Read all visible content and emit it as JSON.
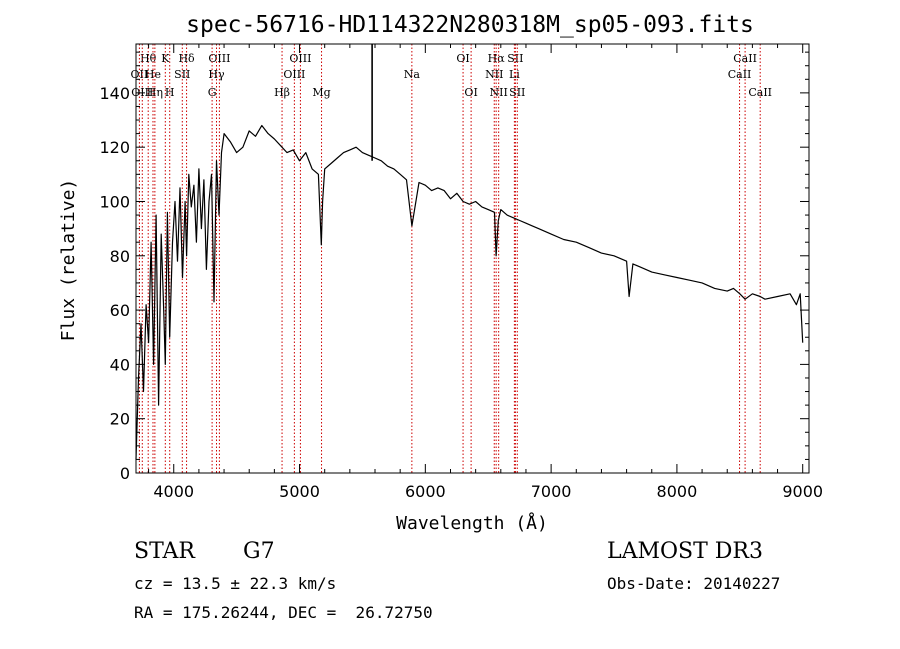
{
  "chart_data": {
    "type": "line",
    "title": "spec-56716-HD114322N280318M_sp05-093.fits",
    "xlabel": "Wavelength (Å)",
    "ylabel": "Flux (relative)",
    "xlim": [
      3700,
      9050
    ],
    "ylim": [
      0,
      158
    ],
    "x_ticks": [
      4000,
      5000,
      6000,
      7000,
      8000,
      9000
    ],
    "y_ticks": [
      0,
      20,
      40,
      60,
      80,
      100,
      120,
      140
    ],
    "grid": false,
    "line_color": "#000000",
    "marker_color": "#cc0000",
    "series": [
      {
        "name": "flux",
        "x": [
          3700,
          3720,
          3740,
          3760,
          3780,
          3800,
          3820,
          3840,
          3860,
          3880,
          3900,
          3920,
          3933,
          3950,
          3968,
          3990,
          4010,
          4030,
          4050,
          4070,
          4090,
          4102,
          4120,
          4140,
          4160,
          4180,
          4200,
          4220,
          4240,
          4260,
          4280,
          4300,
          4320,
          4340,
          4360,
          4380,
          4400,
          4450,
          4500,
          4550,
          4600,
          4650,
          4700,
          4750,
          4800,
          4861,
          4900,
          4950,
          5000,
          5050,
          5100,
          5150,
          5173,
          5183,
          5200,
          5250,
          5300,
          5350,
          5400,
          5450,
          5500,
          5550,
          5600,
          5650,
          5700,
          5750,
          5800,
          5850,
          5893,
          5950,
          6000,
          6050,
          6100,
          6150,
          6200,
          6250,
          6300,
          6350,
          6400,
          6450,
          6500,
          6550,
          6563,
          6580,
          6600,
          6650,
          6700,
          6750,
          6800,
          6850,
          6900,
          7000,
          7100,
          7200,
          7300,
          7400,
          7500,
          7600,
          7620,
          7650,
          7700,
          7800,
          7900,
          8000,
          8100,
          8200,
          8300,
          8400,
          8450,
          8500,
          8542,
          8600,
          8662,
          8700,
          8800,
          8900,
          8950,
          8980,
          9000
        ],
        "y": [
          5,
          35,
          55,
          30,
          62,
          48,
          85,
          40,
          95,
          25,
          88,
          60,
          40,
          96,
          50,
          85,
          100,
          78,
          105,
          72,
          100,
          80,
          110,
          98,
          106,
          85,
          112,
          90,
          108,
          75,
          100,
          110,
          63,
          115,
          95,
          118,
          125,
          122,
          118,
          120,
          126,
          124,
          128,
          125,
          123,
          120,
          118,
          119,
          115,
          118,
          112,
          110,
          84,
          100,
          112,
          114,
          116,
          118,
          119,
          120,
          118,
          117,
          116,
          115,
          113,
          112,
          110,
          108,
          91,
          107,
          106,
          104,
          105,
          104,
          101,
          103,
          100,
          99,
          100,
          98,
          97,
          96,
          80,
          93,
          97,
          95,
          94,
          93,
          92,
          91,
          90,
          88,
          86,
          85,
          83,
          81,
          80,
          78,
          65,
          77,
          76,
          74,
          73,
          72,
          71,
          70,
          68,
          67,
          68,
          66,
          64,
          66,
          65,
          64,
          65,
          66,
          62,
          66,
          48
        ]
      }
    ],
    "spike": {
      "x": 5577,
      "y_top": 158,
      "y_bottom": 115
    },
    "line_markers": [
      {
        "label": "Hθ",
        "wl": 3797,
        "row": 1
      },
      {
        "label": "OII",
        "wl": 3727,
        "row": 2
      },
      {
        "label": "OIII",
        "wl": 3750,
        "row": 3
      },
      {
        "label": "He",
        "wl": 3835,
        "row": 2
      },
      {
        "label": "Hη",
        "wl": 3850,
        "row": 3
      },
      {
        "label": "K",
        "wl": 3933,
        "row": 1
      },
      {
        "label": "SII",
        "wl": 4068,
        "row": 2
      },
      {
        "label": "H",
        "wl": 3968,
        "row": 3
      },
      {
        "label": "Hδ",
        "wl": 4102,
        "row": 1
      },
      {
        "label": "OIII",
        "wl": 4363,
        "row": 1
      },
      {
        "label": "Hγ",
        "wl": 4340,
        "row": 2
      },
      {
        "label": "G",
        "wl": 4305,
        "row": 3
      },
      {
        "label": "OIII",
        "wl": 5007,
        "row": 1
      },
      {
        "label": "OIII",
        "wl": 4959,
        "row": 2
      },
      {
        "label": "Hβ",
        "wl": 4861,
        "row": 3
      },
      {
        "label": "Mg",
        "wl": 5175,
        "row": 3
      },
      {
        "label": "Na",
        "wl": 5893,
        "row": 2
      },
      {
        "label": "OI",
        "wl": 6300,
        "row": 1
      },
      {
        "label": "OI",
        "wl": 6364,
        "row": 3
      },
      {
        "label": "Hα",
        "wl": 6563,
        "row": 1
      },
      {
        "label": "SII",
        "wl": 6716,
        "row": 1
      },
      {
        "label": "NII",
        "wl": 6548,
        "row": 2
      },
      {
        "label": "Li",
        "wl": 6708,
        "row": 2
      },
      {
        "label": "NII",
        "wl": 6583,
        "row": 3
      },
      {
        "label": "SII",
        "wl": 6731,
        "row": 3
      },
      {
        "label": "CaII",
        "wl": 8542,
        "row": 1
      },
      {
        "label": "CaII",
        "wl": 8498,
        "row": 2
      },
      {
        "label": "CaII",
        "wl": 8662,
        "row": 3
      }
    ]
  },
  "info": {
    "object_class": "STAR",
    "subclass": "G7",
    "survey": "LAMOST DR3",
    "redshift": "cz = 13.5 ± 22.3 km/s",
    "obs_date": "Obs-Date: 20140227",
    "coordinates": "RA = 175.26244, DEC =  26.72750"
  }
}
